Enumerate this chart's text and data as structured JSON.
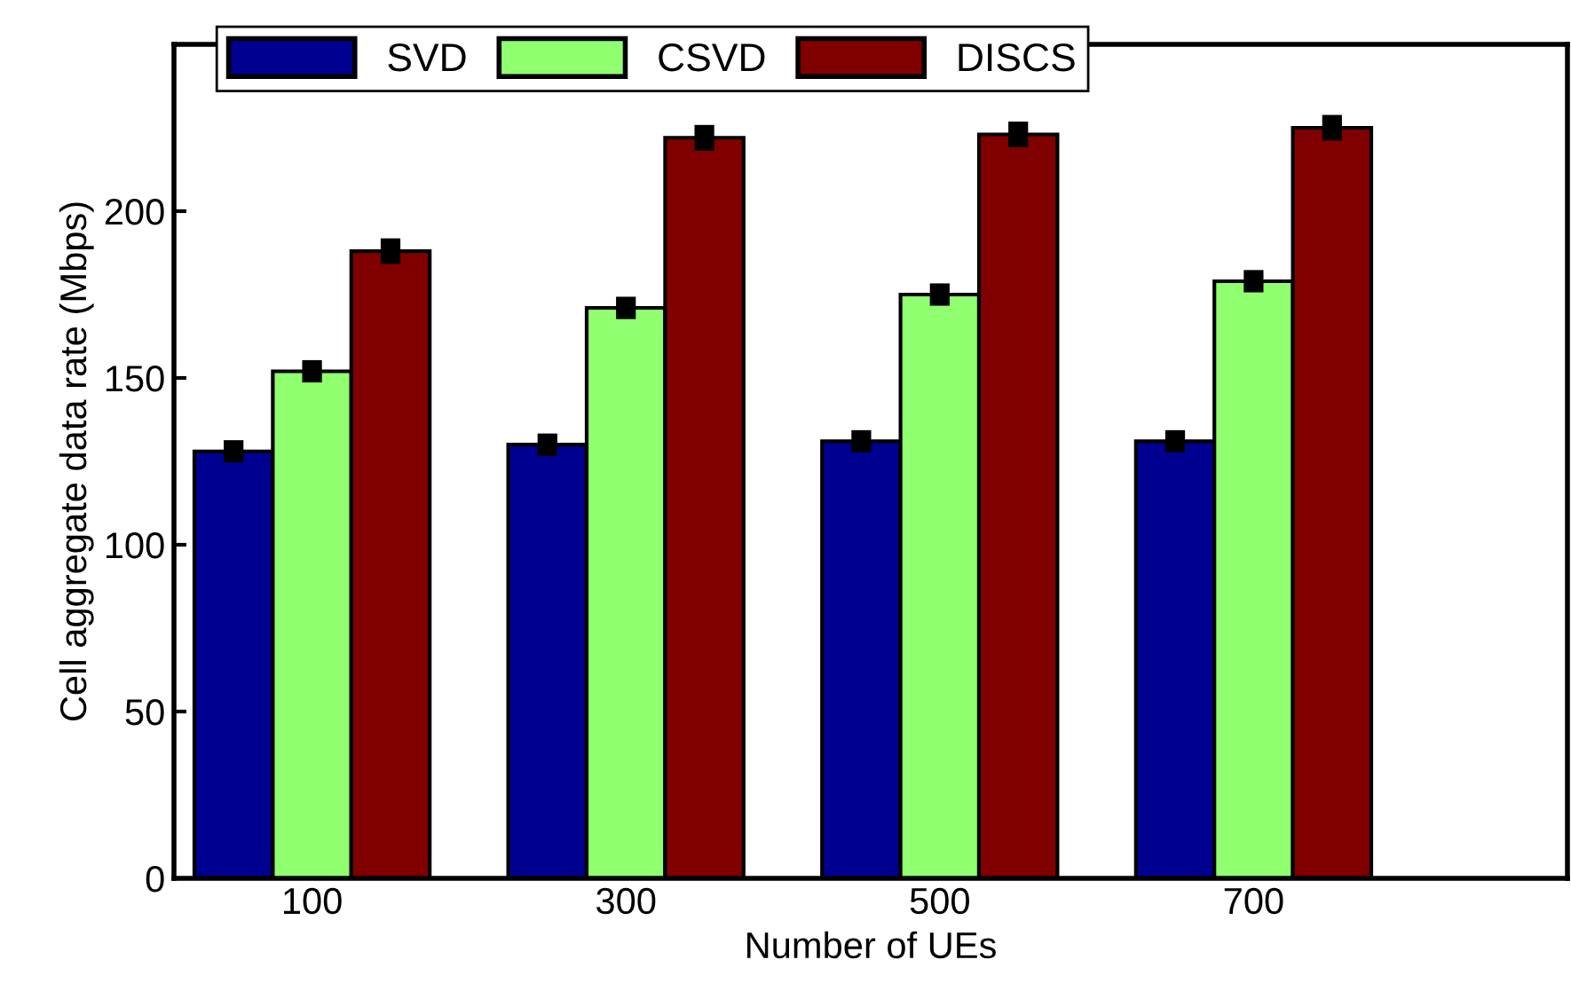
{
  "chart_data": {
    "type": "bar",
    "xlabel": "Number of UEs",
    "ylabel": "Cell aggregate data rate (Mbps)",
    "categories": [
      "100",
      "300",
      "500",
      "700"
    ],
    "series": [
      {
        "name": "SVD",
        "color": "#000090",
        "values": [
          128,
          130,
          131,
          131
        ],
        "errors": [
          1.5,
          1.5,
          1.5,
          1.5
        ]
      },
      {
        "name": "CSVD",
        "color": "#90ff70",
        "values": [
          152,
          171,
          175,
          179
        ],
        "errors": [
          1.5,
          1.5,
          1.5,
          1.5
        ]
      },
      {
        "name": "DISCS",
        "color": "#800000",
        "values": [
          188,
          222,
          223,
          225
        ],
        "errors": [
          2,
          2,
          2,
          2
        ]
      }
    ],
    "ylim": [
      0,
      250
    ],
    "yticks": [
      0,
      50,
      100,
      150,
      200
    ],
    "grid": false,
    "legend": "top left"
  }
}
